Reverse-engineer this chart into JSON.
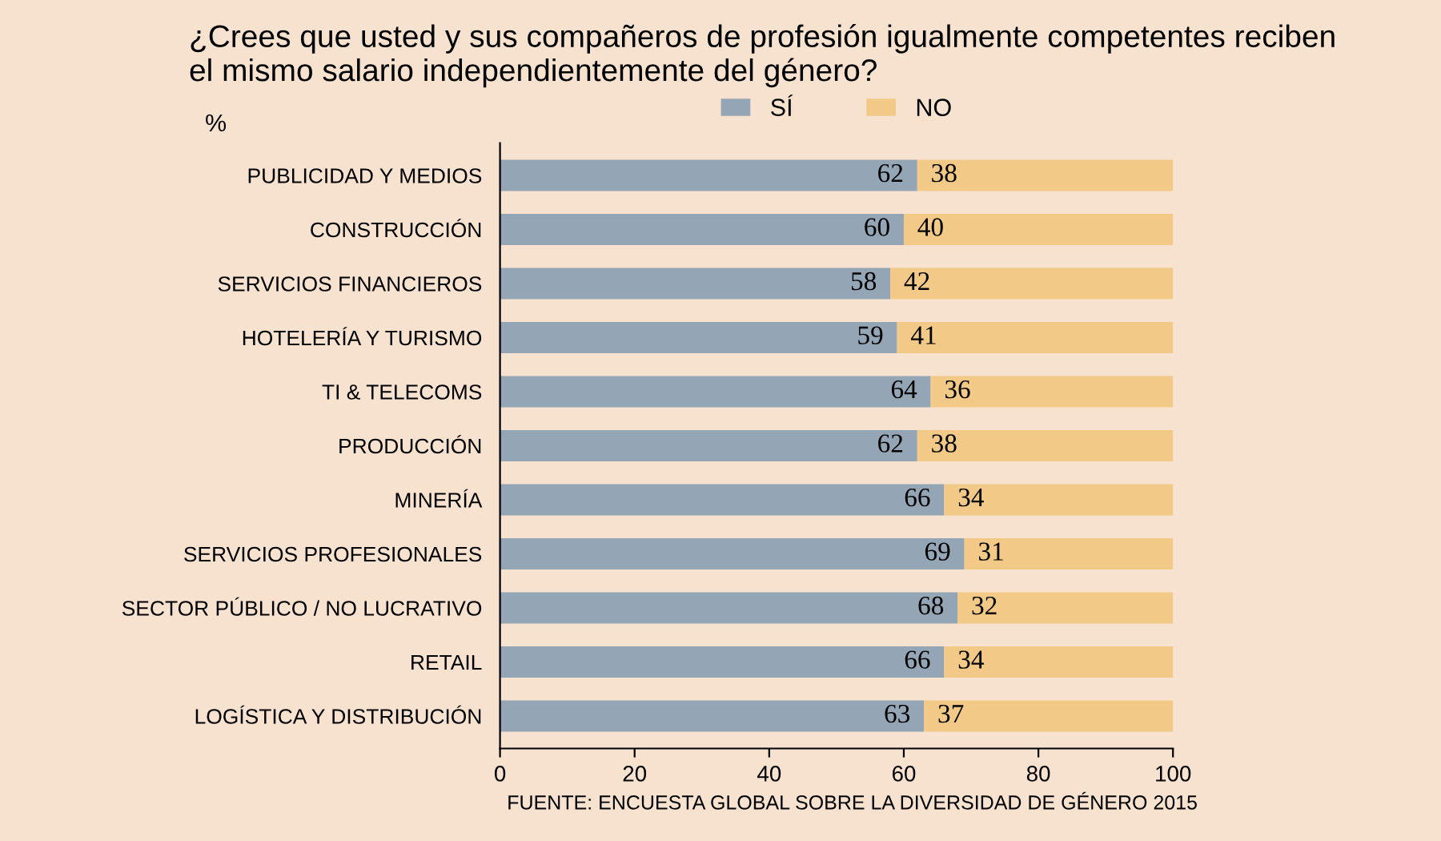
{
  "chart_data": {
    "type": "bar",
    "orientation": "horizontal",
    "stacked": true,
    "title": "¿Crees que usted y sus compañeros de profesión igualmente competentes reciben\nel mismo salario independientemente del género?",
    "ylabel": "%",
    "categories": [
      "PUBLICIDAD Y MEDIOS",
      "CONSTRUCCIÓN",
      "SERVICIOS FINANCIEROS",
      "HOTELERÍA Y TURISMO",
      "TI & TELECOMS",
      "PRODUCCIÓN",
      "MINERÍA",
      "SERVICIOS PROFESIONALES",
      "SECTOR PÚBLICO / NO LUCRATIVO",
      "RETAIL",
      "LOGÍSTICA Y DISTRIBUCIÓN"
    ],
    "series": [
      {
        "name": "SÍ",
        "color": "#94a6b5",
        "values": [
          62,
          60,
          58,
          59,
          64,
          62,
          66,
          69,
          68,
          66,
          63
        ]
      },
      {
        "name": "NO",
        "color": "#f2c987",
        "values": [
          38,
          40,
          42,
          41,
          36,
          38,
          34,
          31,
          32,
          34,
          37
        ]
      }
    ],
    "xlim": [
      0,
      100
    ],
    "xticks": [
      0,
      20,
      40,
      60,
      80,
      100
    ],
    "data_labels": true,
    "legend": "top",
    "grid": false,
    "annotations": [
      "FUENTE: ENCUESTA GLOBAL SOBRE LA DIVERSIDAD DE GÉNERO 2015"
    ]
  }
}
